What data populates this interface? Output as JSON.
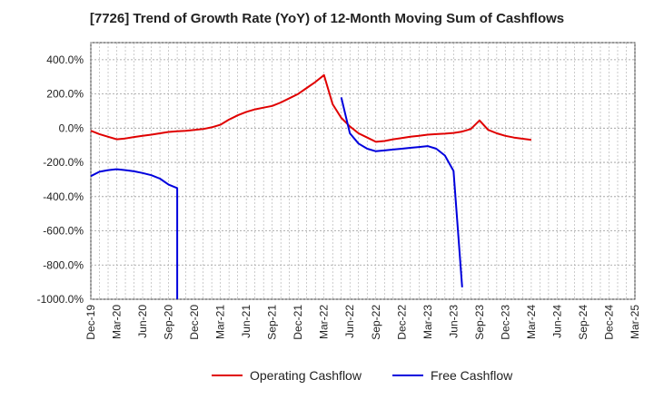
{
  "chart_data": {
    "type": "line",
    "title": "[7726]  Trend of Growth Rate (YoY) of 12-Month Moving Sum of Cashflows",
    "xlabel": "",
    "ylabel": "",
    "ylim": [
      -1000,
      500
    ],
    "y_ticks": [
      "400.0%",
      "200.0%",
      "0.0%",
      "-200.0%",
      "-400.0%",
      "-600.0%",
      "-800.0%",
      "-1000.0%"
    ],
    "y_tick_values": [
      400,
      200,
      0,
      -200,
      -400,
      -600,
      -800,
      -1000
    ],
    "x_tick_labels": [
      "Dec-19",
      "Mar-20",
      "Jun-20",
      "Sep-20",
      "Dec-20",
      "Mar-21",
      "Jun-21",
      "Sep-21",
      "Dec-21",
      "Mar-22",
      "Jun-22",
      "Sep-22",
      "Dec-22",
      "Mar-23",
      "Jun-23",
      "Sep-23",
      "Dec-23",
      "Mar-24",
      "Jun-24",
      "Sep-24",
      "Dec-24",
      "Mar-25"
    ],
    "grid": true,
    "legend_position": "bottom",
    "series": [
      {
        "name": "Operating Cashflow",
        "color": "#e00000",
        "points": [
          [
            "Dec-19",
            -15
          ],
          [
            "Jan-20",
            -35
          ],
          [
            "Feb-20",
            -50
          ],
          [
            "Mar-20",
            -65
          ],
          [
            "Apr-20",
            -60
          ],
          [
            "May-20",
            -52
          ],
          [
            "Jun-20",
            -45
          ],
          [
            "Jul-20",
            -38
          ],
          [
            "Aug-20",
            -30
          ],
          [
            "Sep-20",
            -22
          ],
          [
            "Oct-20",
            -18
          ],
          [
            "Nov-20",
            -15
          ],
          [
            "Dec-20",
            -10
          ],
          [
            "Jan-21",
            -5
          ],
          [
            "Feb-21",
            5
          ],
          [
            "Mar-21",
            20
          ],
          [
            "Apr-21",
            50
          ],
          [
            "May-21",
            75
          ],
          [
            "Jun-21",
            95
          ],
          [
            "Jul-21",
            110
          ],
          [
            "Aug-21",
            120
          ],
          [
            "Sep-21",
            130
          ],
          [
            "Oct-21",
            150
          ],
          [
            "Nov-21",
            175
          ],
          [
            "Dec-21",
            200
          ],
          [
            "Jan-22",
            235
          ],
          [
            "Feb-22",
            270
          ],
          [
            "Mar-22",
            310
          ],
          [
            "Apr-22",
            140
          ],
          [
            "May-22",
            60
          ],
          [
            "Jun-22",
            10
          ],
          [
            "Jul-22",
            -30
          ],
          [
            "Aug-22",
            -55
          ],
          [
            "Sep-22",
            -80
          ],
          [
            "Oct-22",
            -75
          ],
          [
            "Nov-22",
            -65
          ],
          [
            "Dec-22",
            -58
          ],
          [
            "Jan-23",
            -50
          ],
          [
            "Feb-23",
            -45
          ],
          [
            "Mar-23",
            -38
          ],
          [
            "Apr-23",
            -35
          ],
          [
            "May-23",
            -32
          ],
          [
            "Jun-23",
            -28
          ],
          [
            "Jul-23",
            -20
          ],
          [
            "Aug-23",
            -5
          ],
          [
            "Sep-23",
            45
          ],
          [
            "Oct-23",
            -10
          ],
          [
            "Nov-23",
            -30
          ],
          [
            "Dec-23",
            -45
          ],
          [
            "Jan-24",
            -55
          ],
          [
            "Feb-24",
            -62
          ],
          [
            "Mar-24",
            -68
          ]
        ]
      },
      {
        "name": "Free Cashflow",
        "color": "#0000dd",
        "segments": [
          [
            [
              "Dec-19",
              -280
            ],
            [
              "Jan-20",
              -255
            ],
            [
              "Feb-20",
              -245
            ],
            [
              "Mar-20",
              -240
            ],
            [
              "Apr-20",
              -245
            ],
            [
              "May-20",
              -252
            ],
            [
              "Jun-20",
              -262
            ],
            [
              "Jul-20",
              -275
            ],
            [
              "Aug-20",
              -295
            ],
            [
              "Sep-20",
              -330
            ],
            [
              "Oct-20",
              -350
            ],
            [
              "Oct-20",
              -1000
            ]
          ],
          [
            [
              "May-22",
              180
            ],
            [
              "Jun-22",
              -30
            ],
            [
              "Jul-22",
              -90
            ],
            [
              "Aug-22",
              -120
            ],
            [
              "Sep-22",
              -135
            ],
            [
              "Oct-22",
              -130
            ],
            [
              "Nov-22",
              -125
            ],
            [
              "Dec-22",
              -120
            ],
            [
              "Jan-23",
              -115
            ],
            [
              "Feb-23",
              -110
            ],
            [
              "Mar-23",
              -105
            ],
            [
              "Apr-23",
              -120
            ],
            [
              "May-23",
              -160
            ],
            [
              "Jun-23",
              -250
            ],
            [
              "Jul-23",
              -930
            ]
          ]
        ]
      }
    ]
  }
}
